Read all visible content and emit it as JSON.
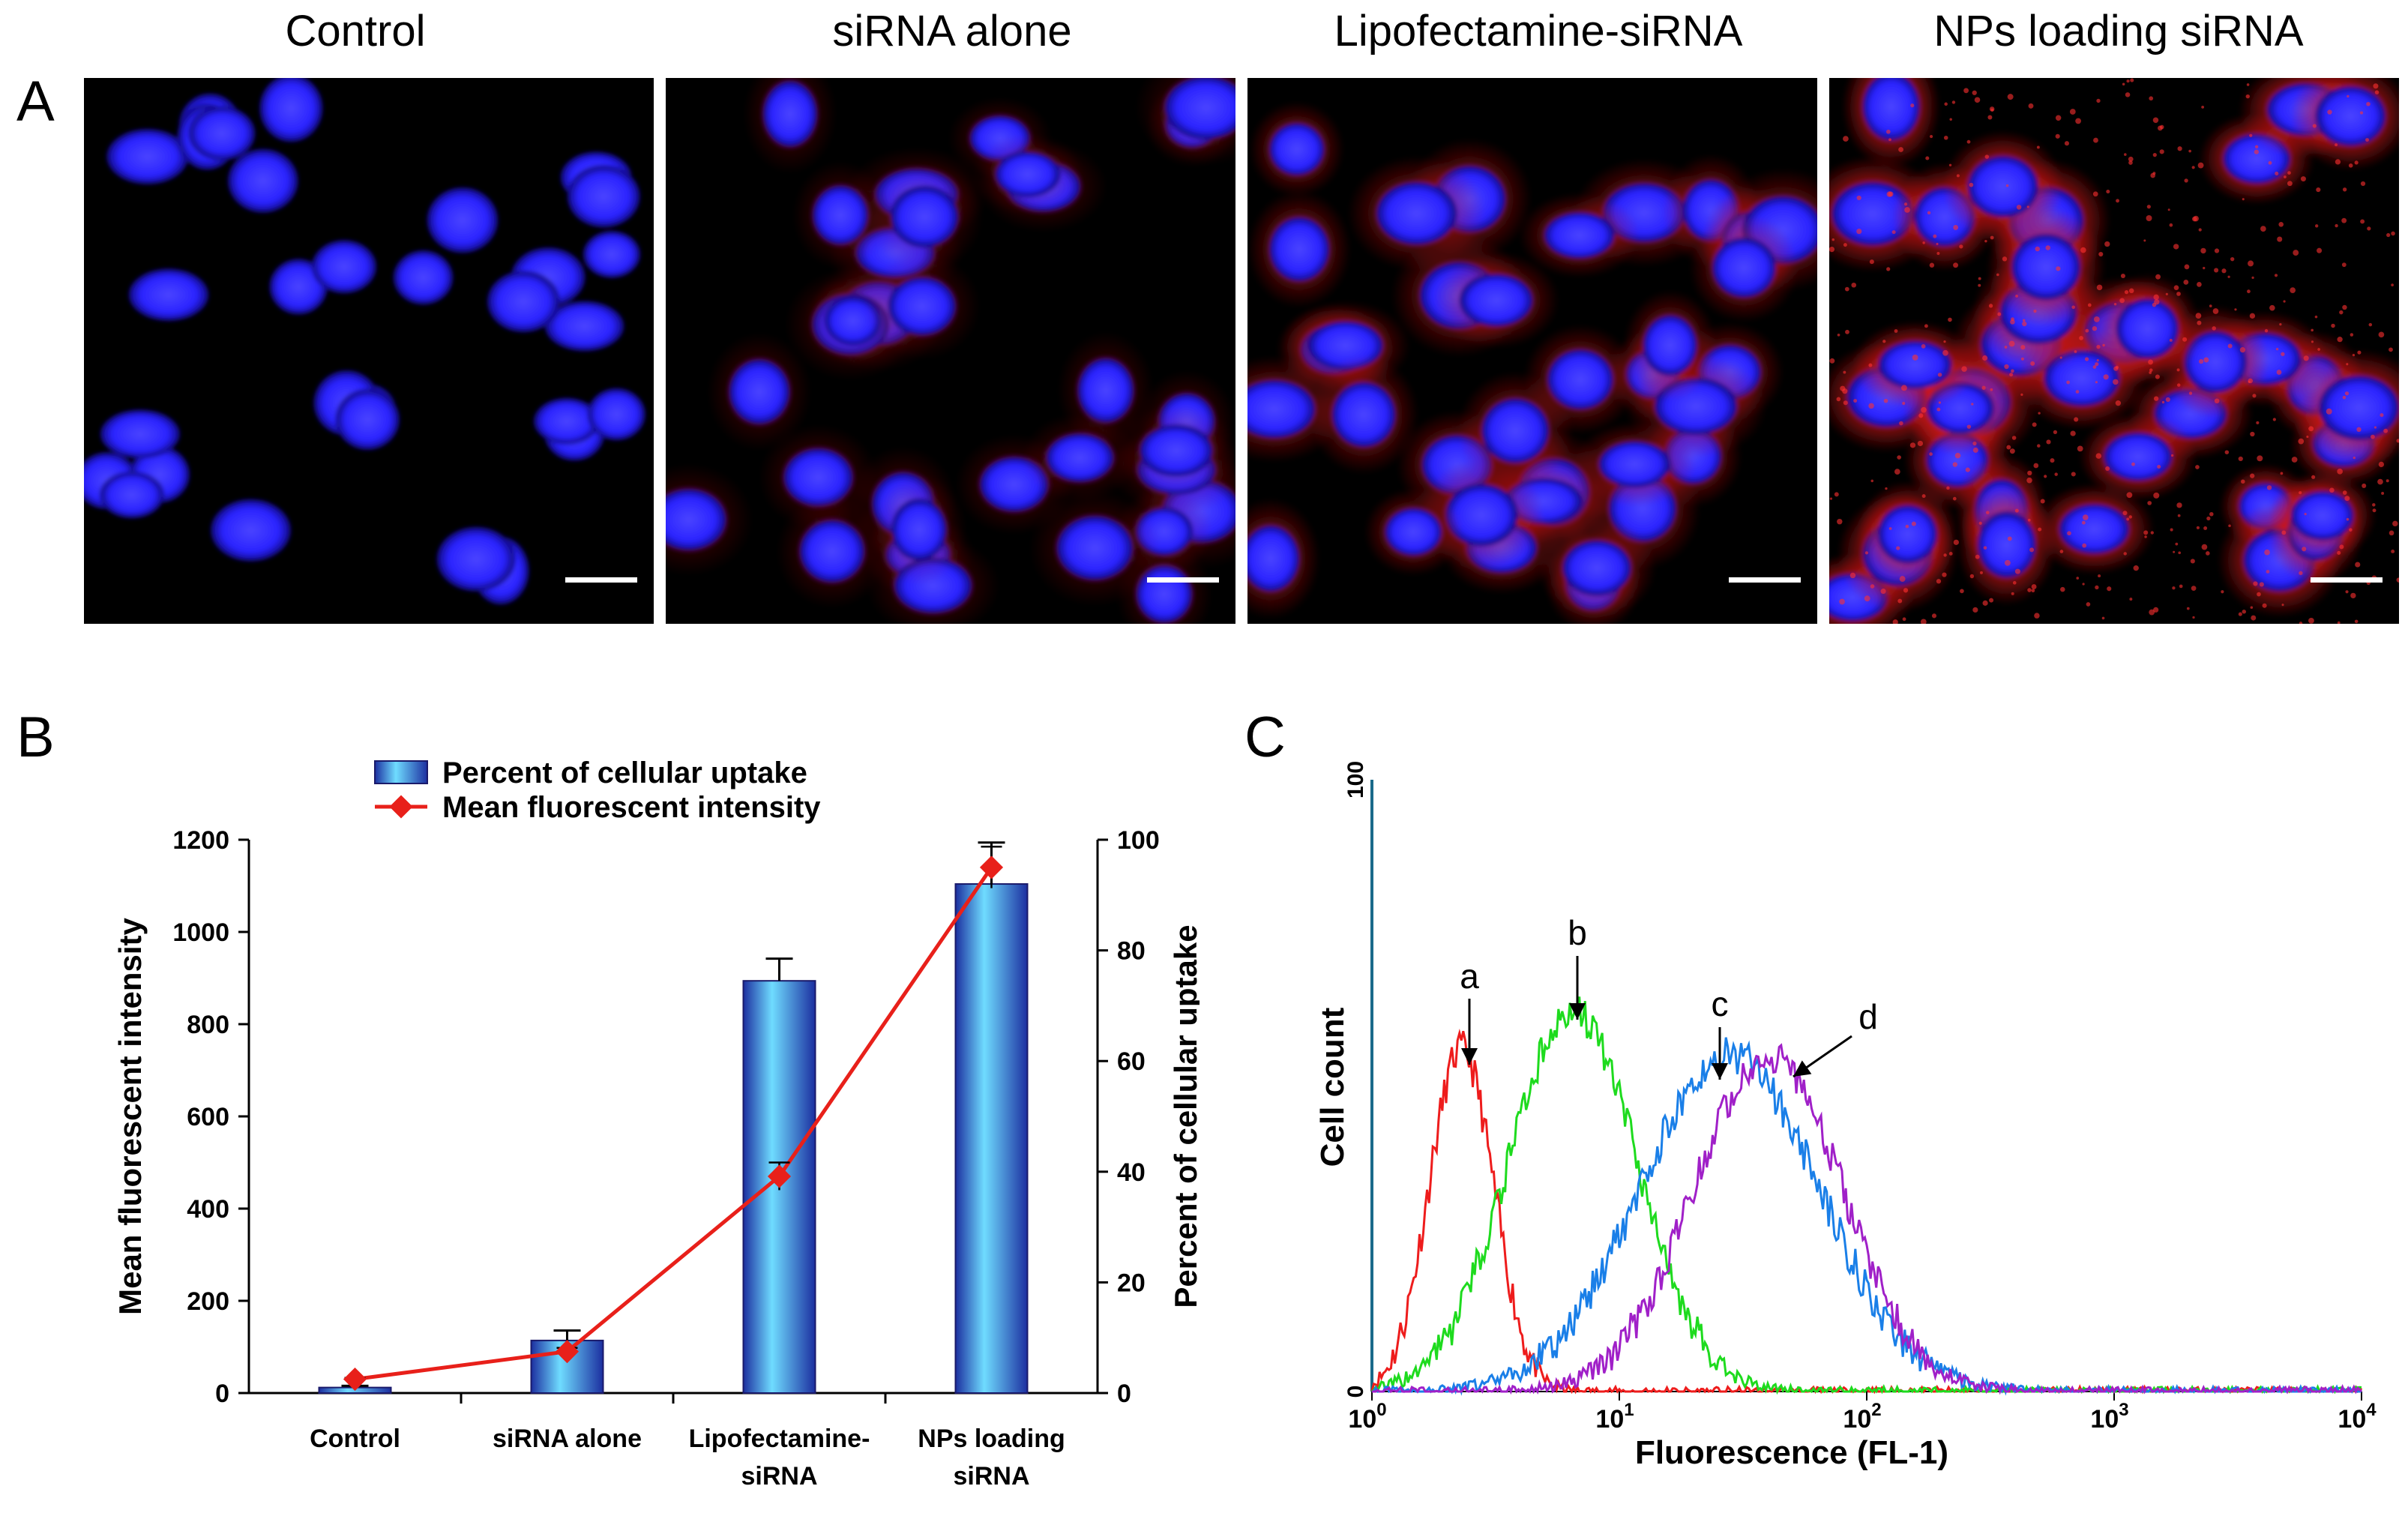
{
  "panel_a": {
    "letter": "A",
    "titles": [
      "Control",
      "siRNA alone",
      "Lipofectamine-siRNA",
      "NPs loading siRNA"
    ]
  },
  "panel_b": {
    "letter": "B"
  },
  "panel_c": {
    "letter": "C"
  },
  "colors": {
    "nucleus_blue": "#2a23ff",
    "sirna_red": "#e01818",
    "bar_light": "#6fdcff",
    "bar_dark": "#1c2fa0",
    "line_red": "#e8201a",
    "curve_a": "#ee1c1c",
    "curve_b": "#1edb1e",
    "curve_c": "#1a7fe8",
    "curve_d": "#a020c8"
  },
  "chart_data": [
    {
      "type": "bar",
      "panel": "B",
      "categories": [
        "Control",
        "siRNA alone",
        "Lipofectamine-siRNA",
        "NPs loading siRNA"
      ],
      "category_lines": [
        [
          "Control"
        ],
        [
          "siRNA alone"
        ],
        [
          "Lipofectamine-",
          "siRNA"
        ],
        [
          "NPs loading",
          "siRNA"
        ]
      ],
      "series": [
        {
          "name": "Percent of cellular uptake",
          "kind": "bar",
          "axis": "right",
          "values": [
            1,
            9.5,
            74.5,
            92
          ],
          "errors": [
            0.3,
            1.8,
            4,
            7.5
          ]
        },
        {
          "name": "Mean fluorescent intensity",
          "kind": "line",
          "axis": "left",
          "values": [
            30,
            90,
            470,
            1140
          ],
          "errors": [
            3,
            8,
            30,
            45
          ]
        }
      ],
      "legend": [
        "Percent of cellular uptake",
        "Mean fluorescent intensity"
      ],
      "legend_position": "top",
      "ylabel": "Mean fluorescent intensity",
      "ylim": [
        0,
        1200
      ],
      "yticks": [
        0,
        200,
        400,
        600,
        800,
        1000,
        1200
      ],
      "y2label": "Percent of cellular uptake",
      "y2lim": [
        0,
        100
      ],
      "y2ticks": [
        0,
        20,
        40,
        60,
        80,
        100
      ]
    },
    {
      "type": "line",
      "panel": "C",
      "xlabel": "Fluorescence (FL-1)",
      "ylabel": "Cell count",
      "xscale": "log",
      "xlim": [
        1,
        10000
      ],
      "xticks": [
        {
          "base": "10",
          "exp": "0"
        },
        {
          "base": "10",
          "exp": "1"
        },
        {
          "base": "10",
          "exp": "2"
        },
        {
          "base": "10",
          "exp": "3"
        },
        {
          "base": "10",
          "exp": "4"
        }
      ],
      "ylim": [
        0,
        100
      ],
      "yticks": [
        "0",
        "100"
      ],
      "series": [
        {
          "name": "a",
          "peak_x": 2.3,
          "peak_y": 56,
          "sigma_log": 0.13,
          "baseline": 3
        },
        {
          "name": "b",
          "peak_x": 6.5,
          "peak_y": 62,
          "sigma_log": 0.26,
          "baseline": 2
        },
        {
          "name": "c",
          "peak_x": 28,
          "peak_y": 55,
          "sigma_log": 0.36,
          "baseline": 2
        },
        {
          "name": "d",
          "peak_x": 40,
          "peak_y": 55,
          "sigma_log": 0.3,
          "baseline": 2
        }
      ],
      "annotations": [
        "a",
        "b",
        "c",
        "d"
      ]
    }
  ]
}
